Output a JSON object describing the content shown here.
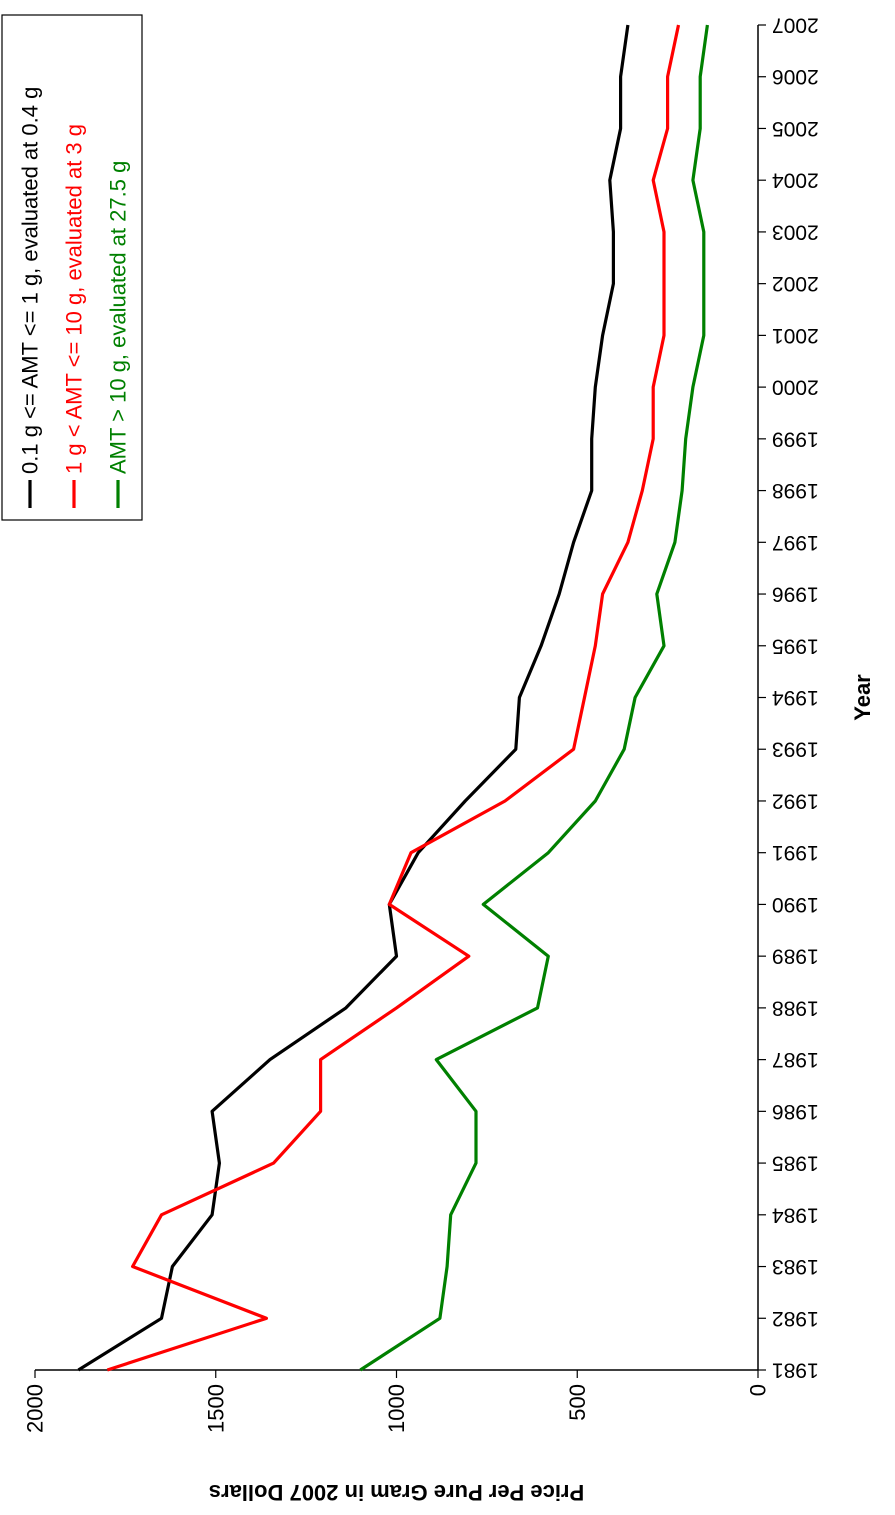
{
  "chart_data": {
    "type": "line",
    "title": "",
    "xlabel": "Year",
    "ylabel": "Price Per Pure Gram in 2007 Dollars",
    "ylim": [
      0,
      2000
    ],
    "yticks": [
      "0",
      "500",
      "1000",
      "1500",
      "2000"
    ],
    "categories": [
      "1981",
      "1982",
      "1983",
      "1984",
      "1985",
      "1986",
      "1987",
      "1988",
      "1989",
      "1990",
      "1991",
      "1992",
      "1993",
      "1994",
      "1995",
      "1996",
      "1997",
      "1998",
      "1999",
      "2000",
      "2001",
      "2002",
      "2003",
      "2004",
      "2005",
      "2006",
      "2007"
    ],
    "grid": false,
    "legend_position": "top-right",
    "series": [
      {
        "name": "0.1 g <= AMT <= 1 g, evaluated at 0.4 g",
        "color": "#000000",
        "values": [
          1880,
          1650,
          1620,
          1510,
          1490,
          1510,
          1350,
          1140,
          1000,
          1020,
          940,
          810,
          670,
          660,
          600,
          550,
          510,
          460,
          460,
          450,
          430,
          400,
          400,
          410,
          380,
          380,
          360
        ]
      },
      {
        "name": "1 g < AMT <= 10 g, evaluated at 3 g",
        "color": "#ff0000",
        "values": [
          1800,
          1360,
          1730,
          1650,
          1340,
          1210,
          1210,
          1000,
          800,
          1020,
          960,
          700,
          510,
          480,
          450,
          430,
          360,
          320,
          290,
          290,
          260,
          260,
          260,
          290,
          250,
          250,
          220
        ]
      },
      {
        "name": "AMT > 10 g, evaluated at 27.5 g",
        "color": "#008000",
        "values": [
          1100,
          880,
          860,
          850,
          780,
          780,
          890,
          610,
          580,
          760,
          580,
          450,
          370,
          340,
          260,
          280,
          230,
          210,
          200,
          180,
          150,
          150,
          150,
          180,
          160,
          160,
          140
        ]
      }
    ]
  }
}
